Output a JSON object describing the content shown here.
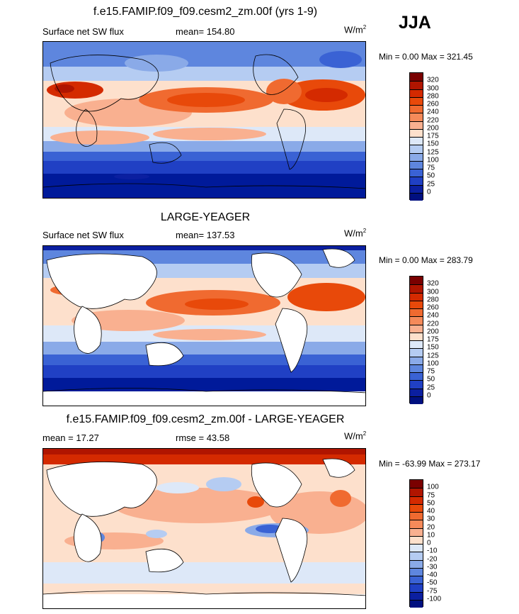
{
  "season": "JJA",
  "panels": [
    {
      "title": "f.e15.FAMIP.f09_f09.cesm2_zm.00f (yrs 1-9)",
      "left_label": "Surface net SW flux",
      "center_label": "mean=  154.80",
      "units_base": "W/m",
      "units_sup": "2",
      "minmax": "Min =   0.00 Max = 321.45",
      "colorbar": {
        "levels": [
          "320",
          "300",
          "280",
          "260",
          "240",
          "220",
          "200",
          "175",
          "150",
          "125",
          "100",
          "75",
          "50",
          "25",
          "0"
        ],
        "colors": [
          "#7a0000",
          "#b01500",
          "#d42a00",
          "#e8490a",
          "#f06a30",
          "#f58a5a",
          "#f9b090",
          "#fde0cc",
          "#dde8f8",
          "#b5ccf2",
          "#8aaae8",
          "#5e86de",
          "#3a62d4",
          "#2040c4",
          "#0b1fa0",
          "#001080"
        ]
      }
    },
    {
      "title": "LARGE-YEAGER",
      "left_label": "Surface net SW flux",
      "center_label": "mean=  137.53",
      "units_base": "W/m",
      "units_sup": "2",
      "minmax": "Min =   0.00 Max = 283.79",
      "colorbar": {
        "levels": [
          "320",
          "300",
          "280",
          "260",
          "240",
          "220",
          "200",
          "175",
          "150",
          "125",
          "100",
          "75",
          "50",
          "25",
          "0"
        ],
        "colors": [
          "#7a0000",
          "#b01500",
          "#d42a00",
          "#e8490a",
          "#f06a30",
          "#f58a5a",
          "#f9b090",
          "#fde0cc",
          "#dde8f8",
          "#b5ccf2",
          "#8aaae8",
          "#5e86de",
          "#3a62d4",
          "#2040c4",
          "#0b1fa0",
          "#001080"
        ]
      }
    },
    {
      "title": "f.e15.FAMIP.f09_f09.cesm2_zm.00f - LARGE-YEAGER",
      "left_label": "mean =  17.27",
      "center_label": "rmse =  43.58",
      "units_base": "W/m",
      "units_sup": "2",
      "minmax": "Min = -63.99 Max = 273.17",
      "colorbar": {
        "levels": [
          "100",
          "75",
          "50",
          "40",
          "30",
          "20",
          "10",
          "0",
          "-10",
          "-20",
          "-30",
          "-40",
          "-50",
          "-75",
          "-100"
        ],
        "colors": [
          "#7a0000",
          "#b01500",
          "#d42a00",
          "#e8490a",
          "#f06a30",
          "#f58a5a",
          "#f9b090",
          "#fde0cc",
          "#dde8f8",
          "#b5ccf2",
          "#8aaae8",
          "#5e86de",
          "#3a62d4",
          "#2040c4",
          "#0b1fa0",
          "#001080"
        ]
      }
    }
  ]
}
